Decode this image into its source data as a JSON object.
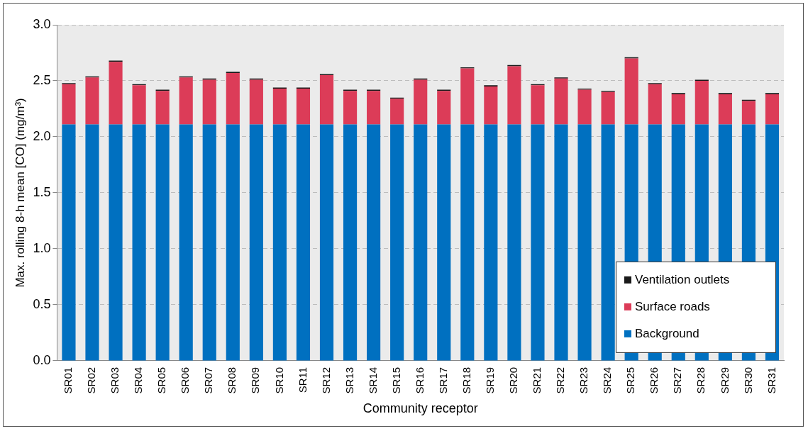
{
  "chart_data": {
    "type": "bar",
    "stacked": true,
    "xlabel": "Community receptor",
    "ylabel": "Max. rolling 8-h mean [CO] (mg/m³)",
    "categories": [
      "SR01",
      "SR02",
      "SR03",
      "SR04",
      "SR05",
      "SR06",
      "SR07",
      "SR08",
      "SR09",
      "SR10",
      "SR11",
      "SR12",
      "SR13",
      "SR14",
      "SR15",
      "SR16",
      "SR17",
      "SR18",
      "SR19",
      "SR20",
      "SR21",
      "SR22",
      "SR23",
      "SR24",
      "SR25",
      "SR26",
      "SR27",
      "SR28",
      "SR29",
      "SR30",
      "SR31"
    ],
    "series": [
      {
        "name": "Background",
        "color": "#0070c0",
        "values": [
          2.11,
          2.11,
          2.11,
          2.11,
          2.11,
          2.11,
          2.11,
          2.11,
          2.11,
          2.11,
          2.11,
          2.11,
          2.11,
          2.11,
          2.11,
          2.11,
          2.11,
          2.11,
          2.11,
          2.11,
          2.11,
          2.11,
          2.11,
          2.11,
          2.11,
          2.11,
          2.11,
          2.11,
          2.11,
          2.11,
          2.11
        ]
      },
      {
        "name": "Surface roads",
        "color": "#dc3c58",
        "values": [
          0.36,
          0.42,
          0.56,
          0.35,
          0.3,
          0.42,
          0.4,
          0.46,
          0.4,
          0.32,
          0.32,
          0.44,
          0.3,
          0.3,
          0.23,
          0.4,
          0.3,
          0.5,
          0.34,
          0.52,
          0.35,
          0.41,
          0.31,
          0.29,
          0.59,
          0.36,
          0.27,
          0.39,
          0.27,
          0.21,
          0.27
        ]
      },
      {
        "name": "Ventilation outlets",
        "color": "#1a1a1a",
        "values": [
          0.01,
          0.01,
          0.01,
          0.01,
          0.01,
          0.01,
          0.01,
          0.01,
          0.01,
          0.01,
          0.01,
          0.01,
          0.01,
          0.01,
          0.01,
          0.01,
          0.01,
          0.01,
          0.01,
          0.01,
          0.01,
          0.01,
          0.01,
          0.01,
          0.01,
          0.01,
          0.01,
          0.01,
          0.01,
          0.01,
          0.01
        ]
      }
    ],
    "ylim": [
      0,
      3
    ],
    "yticks": [
      {
        "value": 0,
        "label": "0.0"
      },
      {
        "value": 0.5,
        "label": "0.5"
      },
      {
        "value": 1,
        "label": "1.0"
      },
      {
        "value": 1.5,
        "label": "1.5"
      },
      {
        "value": 2,
        "label": "2.0"
      },
      {
        "value": 2.5,
        "label": "2.5"
      },
      {
        "value": 3,
        "label": "3.0"
      }
    ],
    "grid": "y",
    "legend": "bottom right"
  }
}
